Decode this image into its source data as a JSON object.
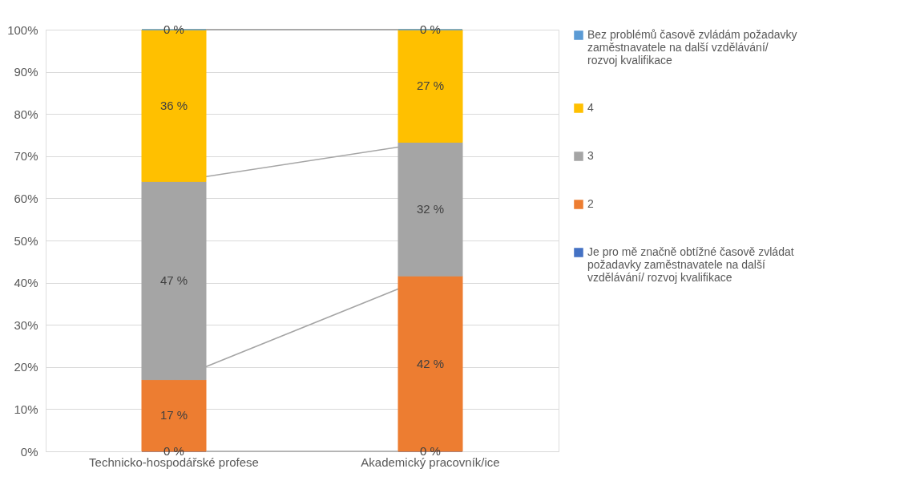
{
  "chart_data": {
    "type": "bar",
    "stacked": true,
    "categories": [
      "Technicko-hospodářské profese",
      "Akademický pracovník/ice"
    ],
    "series": [
      {
        "name": "Je pro mě značně obtížné časově zvládat požadavky zaměstnavatele na další vzdělávání/ rozvoj kvalifikace",
        "color": "#4472c4",
        "values": [
          0,
          0
        ],
        "value_labels": [
          "0 %",
          "0 %"
        ]
      },
      {
        "name": "2",
        "color": "#ed7d31",
        "values": [
          17,
          41.6
        ],
        "value_labels": [
          "17 %",
          "42 %"
        ]
      },
      {
        "name": "3",
        "color": "#a5a5a5",
        "values": [
          47,
          31.7
        ],
        "value_labels": [
          "47 %",
          "32 %"
        ]
      },
      {
        "name": "4",
        "color": "#ffc000",
        "values": [
          36,
          26.7
        ],
        "value_labels": [
          "36 %",
          "27 %"
        ]
      },
      {
        "name": "Bez problémů časově zvládám požadavky zaměstnavatele na další vzdělávání/ rozvoj kvalifikace",
        "color": "#5b9bd5",
        "values": [
          0,
          0
        ],
        "value_labels": [
          "0 %",
          "0 %"
        ]
      }
    ],
    "ylim": [
      0,
      100
    ],
    "yticks": [
      {
        "value": 0,
        "label": "0%"
      },
      {
        "value": 10,
        "label": "10%"
      },
      {
        "value": 20,
        "label": "20%"
      },
      {
        "value": 30,
        "label": "30%"
      },
      {
        "value": 40,
        "label": "40%"
      },
      {
        "value": 50,
        "label": "50%"
      },
      {
        "value": 60,
        "label": "60%"
      },
      {
        "value": 70,
        "label": "70%"
      },
      {
        "value": 80,
        "label": "80%"
      },
      {
        "value": 90,
        "label": "90%"
      },
      {
        "value": 100,
        "label": "100%"
      }
    ],
    "grid": "y",
    "legend": "right"
  }
}
